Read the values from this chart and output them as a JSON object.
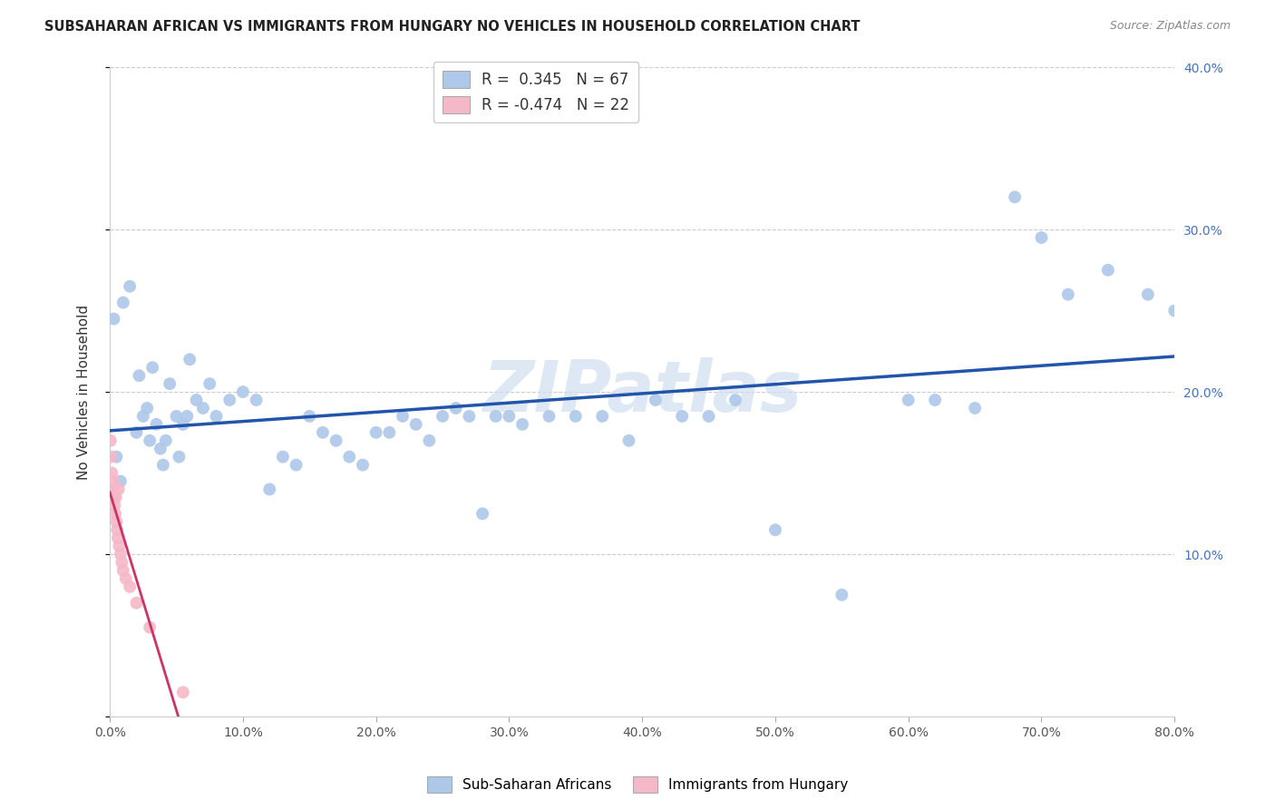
{
  "title": "SUBSAHARAN AFRICAN VS IMMIGRANTS FROM HUNGARY NO VEHICLES IN HOUSEHOLD CORRELATION CHART",
  "source": "Source: ZipAtlas.com",
  "ylabel": "No Vehicles in Household",
  "legend_label1": "Sub-Saharan Africans",
  "legend_label2": "Immigrants from Hungary",
  "R1": 0.345,
  "N1": 67,
  "R2": -0.474,
  "N2": 22,
  "blue_color": "#adc8e8",
  "pink_color": "#f5b8c8",
  "blue_line_color": "#2255aa",
  "pink_line_color": "#cc3366",
  "marker_size": 100,
  "blue_x": [
    0.3,
    0.5,
    0.8,
    1.0,
    1.5,
    2.0,
    2.2,
    2.5,
    2.8,
    3.0,
    3.2,
    3.5,
    3.8,
    4.0,
    4.2,
    4.5,
    5.0,
    5.2,
    5.5,
    5.8,
    6.0,
    6.5,
    7.0,
    7.5,
    8.0,
    9.0,
    10.0,
    11.0,
    12.0,
    13.0,
    14.0,
    15.0,
    16.0,
    17.0,
    18.0,
    19.0,
    20.0,
    21.0,
    22.0,
    23.0,
    24.0,
    25.0,
    26.0,
    27.0,
    28.0,
    29.0,
    30.0,
    31.0,
    33.0,
    35.0,
    37.0,
    39.0,
    41.0,
    43.0,
    45.0,
    47.0,
    50.0,
    55.0,
    60.0,
    65.0,
    70.0,
    72.0,
    75.0,
    78.0,
    80.0,
    62.0,
    68.0
  ],
  "blue_y": [
    24.5,
    16.0,
    14.5,
    25.5,
    26.5,
    17.5,
    21.0,
    18.5,
    19.0,
    17.0,
    21.5,
    18.0,
    16.5,
    15.5,
    17.0,
    20.5,
    18.5,
    16.0,
    18.0,
    18.5,
    22.0,
    19.5,
    19.0,
    20.5,
    18.5,
    19.5,
    20.0,
    19.5,
    14.0,
    16.0,
    15.5,
    18.5,
    17.5,
    17.0,
    16.0,
    15.5,
    17.5,
    17.5,
    18.5,
    18.0,
    17.0,
    18.5,
    19.0,
    18.5,
    12.5,
    18.5,
    18.5,
    18.0,
    18.5,
    18.5,
    18.5,
    17.0,
    19.5,
    18.5,
    18.5,
    19.5,
    11.5,
    7.5,
    19.5,
    19.0,
    29.5,
    26.0,
    27.5,
    26.0,
    25.0,
    19.5,
    32.0
  ],
  "pink_x": [
    0.05,
    0.1,
    0.15,
    0.2,
    0.25,
    0.3,
    0.35,
    0.4,
    0.45,
    0.5,
    0.55,
    0.6,
    0.65,
    0.7,
    0.8,
    0.9,
    1.0,
    1.2,
    1.5,
    2.0,
    3.0,
    5.5
  ],
  "pink_y": [
    17.0,
    16.0,
    15.0,
    14.0,
    14.5,
    13.5,
    13.0,
    12.5,
    13.5,
    12.0,
    11.5,
    11.0,
    14.0,
    10.5,
    10.0,
    9.5,
    9.0,
    8.5,
    8.0,
    7.0,
    5.5,
    1.5
  ],
  "xlim": [
    0,
    80
  ],
  "ylim": [
    0,
    40
  ],
  "xticks": [
    0,
    10,
    20,
    30,
    40,
    50,
    60,
    70,
    80
  ],
  "yticks": [
    0,
    10,
    20,
    30,
    40
  ],
  "watermark": "ZIPatlas",
  "background_color": "#ffffff",
  "grid_color": "#cccccc",
  "right_tick_color": "#4472c4"
}
